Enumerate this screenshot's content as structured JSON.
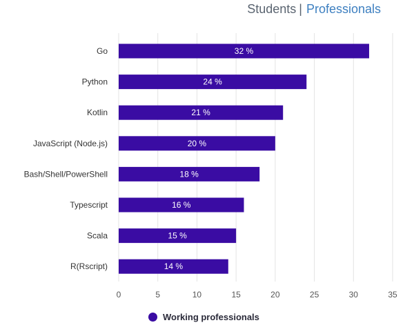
{
  "tabs": {
    "students": "Students",
    "separator": "|",
    "professionals": "Professionals"
  },
  "colors": {
    "bar": "#3a0ca3",
    "bar_label": "#ffffff",
    "grid": "#e3e3e3",
    "tick": "#555555",
    "active_tab": "#3d7fc0"
  },
  "chart_data": {
    "type": "bar",
    "orientation": "horizontal",
    "categories": [
      "Go",
      "Python",
      "Kotlin",
      "JavaScript (Node.js)",
      "Bash/Shell/PowerShell",
      "Typescript",
      "Scala",
      "R(Rscript)"
    ],
    "series": [
      {
        "name": "Working professionals",
        "values": [
          32,
          24,
          21,
          20,
          18,
          16,
          15,
          14
        ],
        "labels": [
          "32 %",
          "24 %",
          "21 %",
          "20 %",
          "18 %",
          "16 %",
          "15 %",
          "14 %"
        ]
      }
    ],
    "xticks": [
      0,
      5,
      10,
      15,
      20,
      25,
      30,
      35
    ],
    "xlim": [
      0,
      35
    ],
    "grid": true,
    "legend_position": "bottom"
  }
}
